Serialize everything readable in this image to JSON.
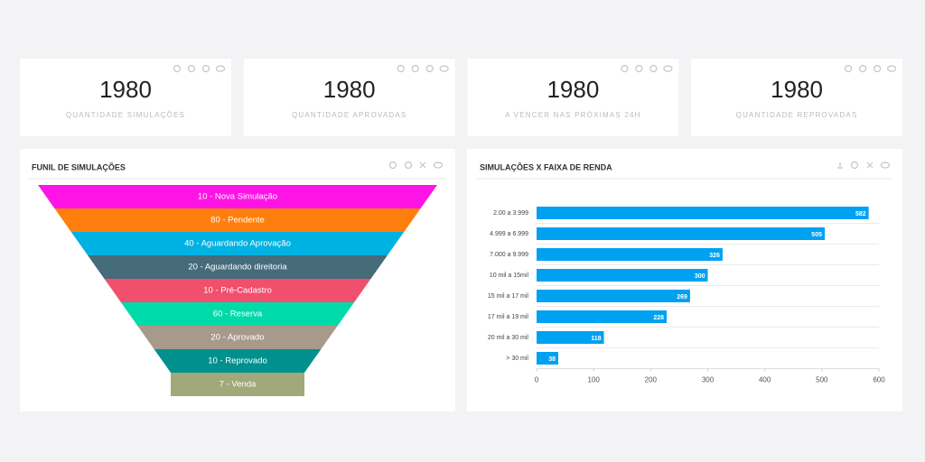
{
  "cards": [
    {
      "value": 1980,
      "label": "QUANTIDADE SIMULAÇÕES"
    },
    {
      "value": 1980,
      "label": "QUANTIDADE APROVADAS"
    },
    {
      "value": 1980,
      "label": "A VENCER NAS PRÓXIMAS 24H"
    },
    {
      "value": 1980,
      "label": "QUANTIDADE REPROVADAS"
    }
  ],
  "chart_data": [
    {
      "type": "funnel",
      "title": "FUNIL DE SIMULAÇÕES",
      "values": [
        10,
        80,
        40,
        20,
        10,
        60,
        20,
        10,
        7
      ],
      "value_labels": [
        "10 - Nova Simulação",
        "80 - Pendente",
        "40 - Aguardando Aprovação",
        "20 - Aguardando direitoria",
        "10 - Pré-Cadastro",
        "60 - Reserva",
        "20 - Aprovado",
        "10 - Reprovado",
        "7 - Venda"
      ],
      "colors": [
        "#ff14e6",
        "#ff7f0e",
        "#00b2e2",
        "#466b7b",
        "#f0506e",
        "#00d9aa",
        "#a89a8b",
        "#00918f",
        "#a0a97a"
      ]
    },
    {
      "type": "hbar",
      "title": "SIMULAÇÕES X FAIXA DE RENDA",
      "categories": [
        "2.00 a 3.999",
        "4.999 a 6.999",
        "7.000 a 9.999",
        "10 mil a 15mil",
        "15 mil a 17 mil",
        "17 mil a 19 mil",
        "20 mil a 30 mil",
        "> 30 mil"
      ],
      "values": [
        582,
        505,
        326,
        300,
        269,
        228,
        118,
        38
      ],
      "color": "#00a1f1",
      "xlim": [
        0,
        600
      ],
      "xticks": [
        0,
        100,
        200,
        300,
        400,
        500,
        600
      ]
    }
  ]
}
